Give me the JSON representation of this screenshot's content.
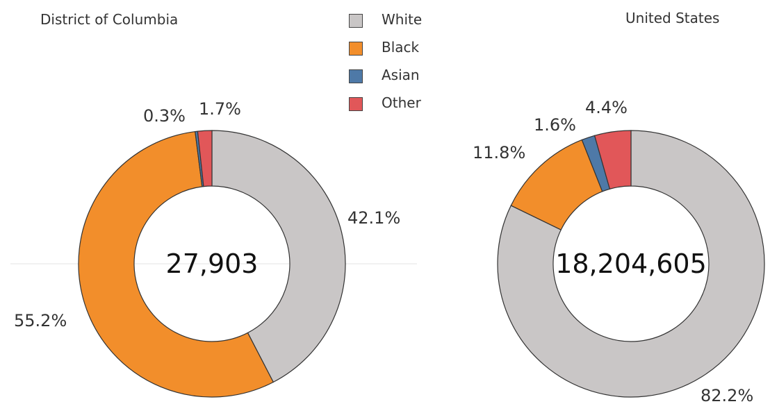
{
  "legend": [
    {
      "label": "White",
      "color": "#c9c6c6"
    },
    {
      "label": "Black",
      "color": "#f28e2b"
    },
    {
      "label": "Asian",
      "color": "#4e79a7"
    },
    {
      "label": "Other",
      "color": "#e15759"
    }
  ],
  "chart_data": [
    {
      "type": "pie",
      "title": "District of Columbia",
      "center_label": "27,903",
      "slices": [
        {
          "name": "White",
          "value": 42.1,
          "label": "42.1%"
        },
        {
          "name": "Black",
          "value": 55.2,
          "label": "55.2%"
        },
        {
          "name": "Asian",
          "value": 0.3,
          "label": "0.3%"
        },
        {
          "name": "Other",
          "value": 1.7,
          "label": "1.7%"
        }
      ]
    },
    {
      "type": "pie",
      "title": "United States",
      "center_label": "18,204,605",
      "slices": [
        {
          "name": "White",
          "value": 82.2,
          "label": "82.2%"
        },
        {
          "name": "Black",
          "value": 11.8,
          "label": "11.8%"
        },
        {
          "name": "Asian",
          "value": 1.6,
          "label": "1.6%"
        },
        {
          "name": "Other",
          "value": 4.4,
          "label": "4.4%"
        }
      ]
    }
  ]
}
